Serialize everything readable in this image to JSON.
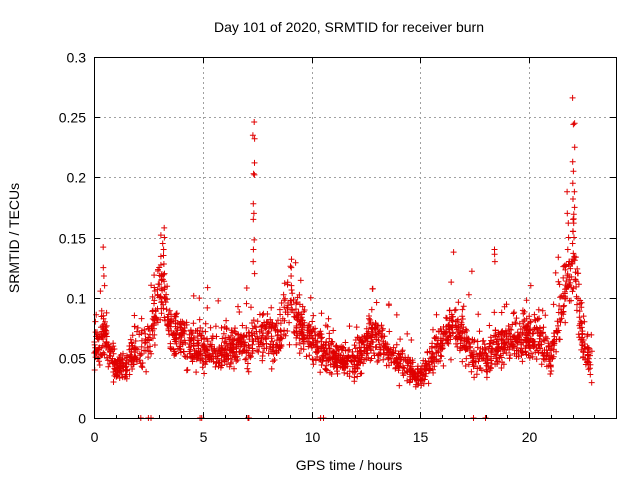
{
  "chart_data": {
    "type": "scatter",
    "title": "Day 101 of 2020, SRMTID for receiver burn",
    "xlabel": "GPS time / hours",
    "ylabel": "SRMTID / TECUs",
    "xlim": [
      0,
      24
    ],
    "ylim": [
      0,
      0.3
    ],
    "x_ticks": [
      0,
      5,
      10,
      15,
      20
    ],
    "x_tick_labels": [
      "0",
      "5",
      "10",
      "15",
      "20"
    ],
    "y_ticks": [
      0,
      0.05,
      0.1,
      0.15,
      0.2,
      0.25,
      0.3
    ],
    "y_tick_labels": [
      "0",
      "0.05",
      "0.1",
      "0.15",
      "0.2",
      "0.25",
      "0.3"
    ],
    "grid": true,
    "marker": "+",
    "color": "#e00000",
    "series": [
      {
        "name": "SRMTID",
        "x_start": 0.0,
        "x_end": 22.9,
        "n_points": 2200,
        "baseline_profile": [
          [
            0.0,
            0.055
          ],
          [
            0.5,
            0.07
          ],
          [
            1.0,
            0.04
          ],
          [
            1.5,
            0.045
          ],
          [
            2.0,
            0.06
          ],
          [
            2.6,
            0.06
          ],
          [
            3.0,
            0.115
          ],
          [
            3.5,
            0.075
          ],
          [
            4.5,
            0.06
          ],
          [
            5.5,
            0.055
          ],
          [
            6.5,
            0.06
          ],
          [
            7.5,
            0.065
          ],
          [
            8.5,
            0.07
          ],
          [
            9.0,
            0.09
          ],
          [
            10.0,
            0.065
          ],
          [
            11.0,
            0.05
          ],
          [
            12.0,
            0.045
          ],
          [
            12.8,
            0.07
          ],
          [
            13.5,
            0.055
          ],
          [
            14.5,
            0.04
          ],
          [
            15.0,
            0.035
          ],
          [
            16.0,
            0.06
          ],
          [
            16.5,
            0.08
          ],
          [
            17.5,
            0.05
          ],
          [
            18.5,
            0.055
          ],
          [
            19.5,
            0.065
          ],
          [
            20.5,
            0.07
          ],
          [
            21.0,
            0.05
          ],
          [
            21.5,
            0.09
          ],
          [
            22.0,
            0.135
          ],
          [
            22.5,
            0.06
          ],
          [
            22.9,
            0.045
          ]
        ],
        "spikes": [
          {
            "x": 7.35,
            "values": [
              0.246,
              0.235,
              0.232,
              0.212,
              0.203,
              0.202,
              0.178,
              0.17,
              0.165,
              0.148,
              0.14,
              0.13,
              0.12
            ]
          },
          {
            "x": 22.05,
            "values": [
              0.266,
              0.245,
              0.244,
              0.225,
              0.213,
              0.205,
              0.195,
              0.188,
              0.182,
              0.175,
              0.165,
              0.162,
              0.155,
              0.15,
              0.145
            ]
          },
          {
            "x": 21.8,
            "values": [
              0.188,
              0.17,
              0.162,
              0.15,
              0.14,
              0.13
            ]
          },
          {
            "x": 3.2,
            "values": [
              0.158,
              0.15,
              0.145,
              0.14,
              0.135,
              0.128,
              0.12
            ]
          },
          {
            "x": 0.45,
            "values": [
              0.142,
              0.125,
              0.118,
              0.11
            ]
          },
          {
            "x": 9.1,
            "values": [
              0.132,
              0.125,
              0.118,
              0.11
            ]
          },
          {
            "x": 18.4,
            "values": [
              0.14,
              0.136,
              0.13
            ]
          },
          {
            "x": 17.4,
            "values": [
              0.122
            ]
          }
        ],
        "zero_points_x": [
          2.15,
          2.5,
          2.62,
          4.88,
          4.95,
          7.08,
          7.12,
          10.42,
          10.55,
          17.45,
          18.0
        ]
      }
    ]
  }
}
